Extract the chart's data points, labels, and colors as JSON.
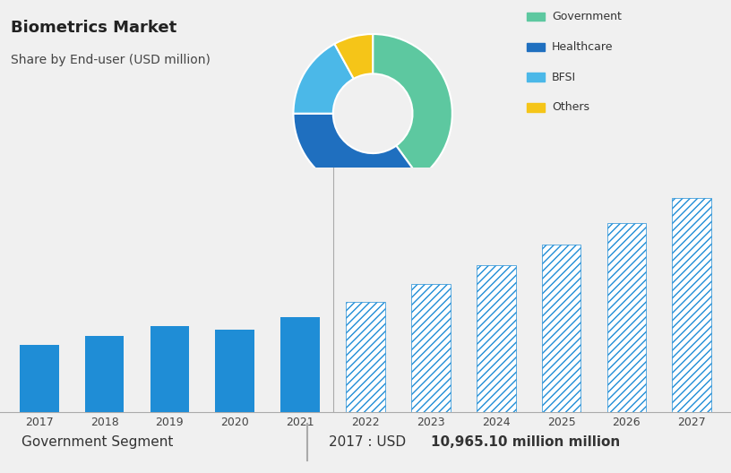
{
  "title": "Biometrics Market",
  "subtitle": "Share by End-user (USD million)",
  "donut_values": [
    40,
    35,
    17,
    8
  ],
  "donut_labels": [
    "Government",
    "Healthcare",
    "BFSI",
    "Others"
  ],
  "donut_colors": [
    "#5DC8A0",
    "#1F6FBF",
    "#4BB8E8",
    "#F5C518"
  ],
  "donut_startangle": 90,
  "bar_years": [
    2017,
    2018,
    2019,
    2020,
    2021,
    2022,
    2023,
    2024,
    2025,
    2026,
    2027
  ],
  "bar_values": [
    10965,
    12500,
    14000,
    13500,
    15500,
    18000,
    21000,
    24000,
    27500,
    31000,
    35000
  ],
  "bar_color_solid": "#1F8DD6",
  "bar_color_hatch": "#1F8DD6",
  "hatch_pattern": "////",
  "top_bg_color": "#C8D6E0",
  "bottom_bg_color": "#F0F0F0",
  "footer_left": "Government Segment",
  "footer_right": "2017 : USD ",
  "footer_bold": "10,965.10 million",
  "footer_bg": "#E8E8E8",
  "grid_color": "#CCCCCC",
  "ylim": [
    0,
    40000
  ],
  "yticks": [
    0,
    10000,
    20000,
    30000,
    40000
  ]
}
